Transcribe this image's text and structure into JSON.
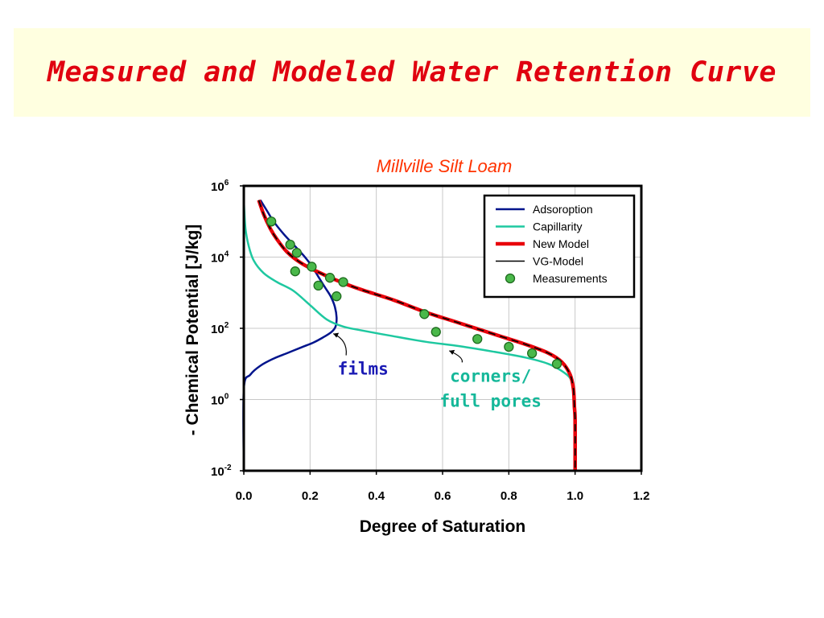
{
  "slide": {
    "title": "Measured and Modeled Water Retention Curve"
  },
  "colors": {
    "title": "#e0000f",
    "title_band": "#ffffe0",
    "chart_title": "#ff3300",
    "adsorption": "#00148c",
    "capillarity": "#1ec8a0",
    "new_model": "#e8000a",
    "vg_model": "#000000",
    "measurements_fill": "#4ab84a",
    "measurements_edge": "#1e6b1e",
    "films_label": "#1a1ab4",
    "corners_label": "#16b89a"
  },
  "chart_data": {
    "type": "line",
    "title": "Millville Silt Loam",
    "xlabel": "Degree of Saturation",
    "ylabel": "- Chemical Potential [J/kg]",
    "xlim": [
      0.0,
      1.2
    ],
    "ylim_log10": [
      -2,
      6
    ],
    "y_scale": "log",
    "xticks": [
      "0.0",
      "0.2",
      "0.4",
      "0.6",
      "0.8",
      "1.0",
      "1.2"
    ],
    "yticks": [
      {
        "base": "10",
        "exp": "6",
        "log10": 6
      },
      {
        "base": "10",
        "exp": "4",
        "log10": 4
      },
      {
        "base": "10",
        "exp": "2",
        "log10": 2
      },
      {
        "base": "10",
        "exp": "0",
        "log10": 0
      },
      {
        "base": "10",
        "exp": "-2",
        "log10": -2
      }
    ],
    "grid": true,
    "legend_position": "top-right",
    "series": [
      {
        "name": "Adsoroption",
        "kind": "line",
        "color_key": "adsorption",
        "points": [
          [
            0.0,
            -2
          ],
          [
            0.0,
            0.3
          ],
          [
            0.02,
            0.7
          ],
          [
            0.05,
            0.95
          ],
          [
            0.09,
            1.15
          ],
          [
            0.13,
            1.3
          ],
          [
            0.17,
            1.45
          ],
          [
            0.21,
            1.6
          ],
          [
            0.24,
            1.75
          ],
          [
            0.265,
            1.9
          ],
          [
            0.277,
            2.05
          ],
          [
            0.28,
            2.3
          ],
          [
            0.275,
            2.6
          ],
          [
            0.262,
            2.9
          ],
          [
            0.245,
            3.15
          ],
          [
            0.225,
            3.45
          ],
          [
            0.205,
            3.75
          ],
          [
            0.18,
            4.05
          ],
          [
            0.15,
            4.35
          ],
          [
            0.12,
            4.65
          ],
          [
            0.09,
            5.0
          ],
          [
            0.07,
            5.3
          ],
          [
            0.05,
            5.6
          ]
        ]
      },
      {
        "name": "Capillarity",
        "kind": "line",
        "color_key": "capillarity",
        "points": [
          [
            0.0,
            5.6
          ],
          [
            0.005,
            4.8
          ],
          [
            0.015,
            4.3
          ],
          [
            0.03,
            3.9
          ],
          [
            0.06,
            3.55
          ],
          [
            0.1,
            3.3
          ],
          [
            0.15,
            3.05
          ],
          [
            0.2,
            2.65
          ],
          [
            0.25,
            2.25
          ],
          [
            0.3,
            2.05
          ],
          [
            0.35,
            1.95
          ],
          [
            0.45,
            1.78
          ],
          [
            0.55,
            1.62
          ],
          [
            0.65,
            1.5
          ],
          [
            0.75,
            1.35
          ],
          [
            0.85,
            1.18
          ],
          [
            0.92,
            1.0
          ],
          [
            0.96,
            0.8
          ],
          [
            0.985,
            0.6
          ],
          [
            0.995,
            0.3
          ],
          [
            0.998,
            0.0
          ],
          [
            1.0,
            -0.5
          ],
          [
            1.0,
            -2
          ]
        ]
      },
      {
        "name": "New Model",
        "kind": "line",
        "color_key": "new_model",
        "points": [
          [
            0.045,
            5.6
          ],
          [
            0.06,
            5.2
          ],
          [
            0.08,
            4.8
          ],
          [
            0.1,
            4.5
          ],
          [
            0.13,
            4.15
          ],
          [
            0.17,
            3.85
          ],
          [
            0.22,
            3.6
          ],
          [
            0.28,
            3.35
          ],
          [
            0.35,
            3.1
          ],
          [
            0.45,
            2.8
          ],
          [
            0.55,
            2.45
          ],
          [
            0.65,
            2.15
          ],
          [
            0.75,
            1.85
          ],
          [
            0.85,
            1.55
          ],
          [
            0.92,
            1.3
          ],
          [
            0.96,
            1.05
          ],
          [
            0.985,
            0.7
          ],
          [
            0.995,
            0.3
          ],
          [
            0.998,
            -0.2
          ],
          [
            1.0,
            -0.6
          ],
          [
            1.0,
            -2
          ]
        ]
      },
      {
        "name": "VG-Model",
        "kind": "line",
        "color_key": "vg_model",
        "points": [
          [
            0.045,
            5.6
          ],
          [
            0.06,
            5.2
          ],
          [
            0.08,
            4.8
          ],
          [
            0.1,
            4.5
          ],
          [
            0.13,
            4.15
          ],
          [
            0.17,
            3.85
          ],
          [
            0.22,
            3.6
          ],
          [
            0.28,
            3.35
          ],
          [
            0.35,
            3.1
          ],
          [
            0.45,
            2.8
          ],
          [
            0.55,
            2.45
          ],
          [
            0.65,
            2.15
          ],
          [
            0.75,
            1.85
          ],
          [
            0.85,
            1.55
          ],
          [
            0.92,
            1.3
          ],
          [
            0.96,
            1.05
          ],
          [
            0.985,
            0.7
          ],
          [
            0.995,
            0.3
          ],
          [
            0.998,
            -0.2
          ],
          [
            1.0,
            -0.6
          ],
          [
            1.0,
            -2
          ]
        ]
      },
      {
        "name": "Measurements",
        "kind": "scatter",
        "color_key": "measurements_fill",
        "points": [
          [
            0.083,
            5.0
          ],
          [
            0.14,
            4.35
          ],
          [
            0.16,
            4.12
          ],
          [
            0.155,
            3.6
          ],
          [
            0.205,
            3.73
          ],
          [
            0.225,
            3.2
          ],
          [
            0.26,
            3.42
          ],
          [
            0.3,
            3.3
          ],
          [
            0.28,
            2.9
          ],
          [
            0.545,
            2.4
          ],
          [
            0.58,
            1.9
          ],
          [
            0.705,
            1.7
          ],
          [
            0.8,
            1.48
          ],
          [
            0.87,
            1.3
          ],
          [
            0.945,
            1.0
          ]
        ]
      }
    ],
    "annotations": [
      {
        "text": "films",
        "color_key": "films_label",
        "at": [
          0.36,
          0.7
        ],
        "arrow_to": [
          0.27,
          1.85
        ]
      },
      {
        "text": "corners/",
        "color_key": "corners_label",
        "at": [
          0.745,
          0.5
        ],
        "arrow_to": [
          0.62,
          1.37
        ]
      },
      {
        "text": "full pores",
        "color_key": "corners_label",
        "at": [
          0.745,
          -0.2
        ]
      }
    ]
  }
}
